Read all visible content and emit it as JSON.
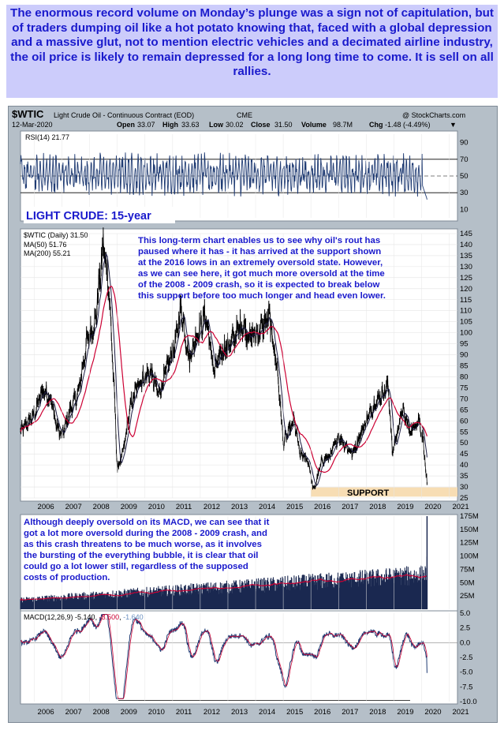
{
  "headline": "The enormous record volume on Monday’s plunge was a sign not of capitulation, but of traders dumping oil like a hot potato knowing that, faced with a global depression and a massive glut, not to mention electric vehicles and a decimated airline industry, the oil price is likely to remain depressed for a long long time to come. It is sell on all rallies.",
  "chart_header": {
    "symbol": "$WTIC",
    "description": "Light Crude Oil - Continuous Contract (EOD)",
    "exchange": "CME",
    "date": "12-Mar-2020",
    "watermark": "@ StockCharts.com",
    "ohlc": {
      "open_label": "Open",
      "open": "33.07",
      "high_label": "High",
      "high": "33.63",
      "low_label": "Low",
      "low": "30.02",
      "close_label": "Close",
      "close": "31.50",
      "volume_label": "Volume",
      "volume": "98.7M",
      "chg_label": "Chg",
      "chg": "-1.48 (-4.49%)",
      "down_glyph": "▼"
    }
  },
  "rsi_panel": {
    "legend": "RSI(14) 21.77",
    "title": "LIGHT CRUDE: 15-year",
    "ticks": [
      "90",
      "70",
      "50",
      "30",
      "10"
    ]
  },
  "price_panel": {
    "legend_main": "$WTIC (Daily) 31.50",
    "legend_ma50": "MA(50) 51.76",
    "legend_ma200": "MA(200) 55.21",
    "note": [
      "This long-term chart enables us to see why oil's rout has",
      "paused where it has - it has arrived at the support shown",
      "at the 2016 lows in an extremely oversold state. However,",
      "as we can see here, it got much more oversold at the time",
      "of the 2008 - 2009 crash, so it is expected to break below",
      "this support before too much longer and head even lower."
    ],
    "support_label": "SUPPORT",
    "ticks": [
      "145",
      "140",
      "135",
      "130",
      "125",
      "120",
      "115",
      "110",
      "105",
      "100",
      "95",
      "90",
      "85",
      "80",
      "75",
      "70",
      "65",
      "60",
      "55",
      "50",
      "45",
      "40",
      "35",
      "30",
      "25"
    ]
  },
  "volume_panel": {
    "note": [
      "Although deeply oversold on its MACD, we can see that it",
      "got a lot more oversold during the 2008 - 2009 crash, and",
      "as this crash threatens to be much worse, as it involves",
      "the bursting of the everything bubble, it is clear that oil",
      "could go a lot lower still, regardless of the supposed",
      "costs of production."
    ],
    "ticks": [
      "175M",
      "150M",
      "125M",
      "100M",
      "75M",
      "50M",
      "25M"
    ]
  },
  "macd_panel": {
    "legend_name": "MACD(12,26,9)",
    "legend_v1": "-5.140",
    "legend_v2": "-3.500",
    "legend_v3": "-1.640",
    "ticks": [
      "5.0",
      "2.5",
      "0.0",
      "-2.5",
      "-5.0",
      "-7.5",
      "-10.0"
    ]
  },
  "x_axis": {
    "years": [
      "2006",
      "2007",
      "2008",
      "2009",
      "2010",
      "2011",
      "2012",
      "2013",
      "2014",
      "2015",
      "2016",
      "2017",
      "2018",
      "2019",
      "2020",
      "2021"
    ]
  },
  "colors": {
    "headline_bg": "#ccccfb",
    "headline_text": "#1a1acc",
    "panel_bg": "#ffffff",
    "frame": "#b5bfc8",
    "rsi_line": "#1f3b73",
    "price_line": "#000000",
    "ma50": "#1a1a40",
    "ma200": "#cc0033",
    "support_band": "#f7ddb4",
    "volume_bars": "#1a2850",
    "note_text": "#1a1acc",
    "macd_line": "#1f3b73",
    "macd_signal": "#cc0033"
  },
  "chart_data": [
    {
      "type": "line",
      "name": "RSI(14)",
      "ylim": [
        0,
        100
      ],
      "reference_lines": [
        70,
        50,
        30
      ],
      "last_value": 21.77
    },
    {
      "type": "line",
      "name": "$WTIC (Daily)",
      "title": "LIGHT CRUDE: 15-year",
      "x_range": [
        "2005-06",
        "2021-03"
      ],
      "ylim": [
        25,
        145
      ],
      "support_level": 27,
      "series": [
        {
          "name": "$WTIC (Daily)",
          "x": [
            2005.5,
            2006.0,
            2006.3,
            2006.6,
            2006.8,
            2007.0,
            2007.3,
            2007.6,
            2007.9,
            2008.2,
            2008.5,
            2008.7,
            2008.9,
            2009.0,
            2009.2,
            2009.5,
            2009.8,
            2010.2,
            2010.5,
            2010.8,
            2011.1,
            2011.3,
            2011.6,
            2011.9,
            2012.2,
            2012.5,
            2012.8,
            2013.1,
            2013.5,
            2013.8,
            2014.1,
            2014.5,
            2014.8,
            2015.0,
            2015.4,
            2015.6,
            2015.9,
            2016.1,
            2016.4,
            2016.7,
            2017.0,
            2017.5,
            2017.9,
            2018.3,
            2018.8,
            2018.95,
            2019.3,
            2019.6,
            2019.9,
            2020.05,
            2020.2
          ],
          "values": [
            55,
            63,
            74,
            70,
            58,
            53,
            65,
            73,
            96,
            105,
            140,
            120,
            70,
            38,
            45,
            68,
            78,
            82,
            72,
            84,
            95,
            112,
            88,
            100,
            108,
            82,
            92,
            95,
            104,
            98,
            100,
            107,
            82,
            50,
            60,
            45,
            42,
            28,
            42,
            44,
            53,
            45,
            57,
            68,
            76,
            45,
            65,
            55,
            61,
            52,
            31.5
          ]
        },
        {
          "name": "MA(50)",
          "last_value": 51.76
        },
        {
          "name": "MA(200)",
          "last_value": 55.21
        }
      ]
    },
    {
      "type": "bar",
      "name": "Volume",
      "ylim": [
        0,
        175
      ],
      "unit": "M",
      "last_value": 98.7
    },
    {
      "type": "line",
      "name": "MACD(12,26,9)",
      "ylim": [
        -10,
        5
      ],
      "series": [
        {
          "name": "MACD",
          "last_value": -5.14
        },
        {
          "name": "Signal",
          "last_value": -3.5
        },
        {
          "name": "Histogram",
          "last_value": -1.64
        }
      ]
    }
  ]
}
